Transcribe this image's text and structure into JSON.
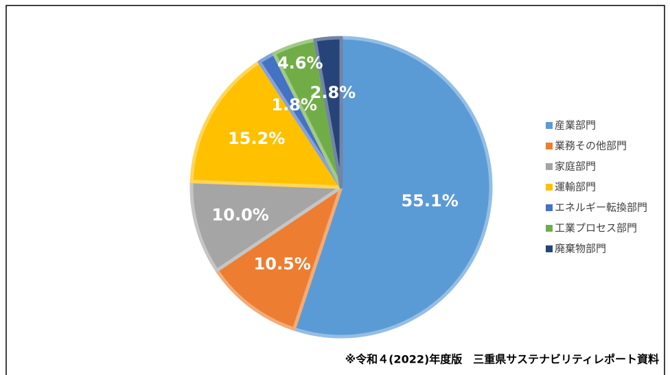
{
  "chart_data": {
    "type": "pie",
    "categories": [
      "産業部門",
      "業務その他部門",
      "家庭部門",
      "運輸部門",
      "エネルギー転換部門",
      "工業プロセス部門",
      "廃棄物部門"
    ],
    "values": [
      55.1,
      10.5,
      10.0,
      15.2,
      1.8,
      4.6,
      2.8
    ],
    "value_labels": [
      "55.1%",
      "10.5%",
      "10.0%",
      "15.2%",
      "1.8%",
      "4.6%",
      "2.8%"
    ],
    "colors": [
      "#5b9bd5",
      "#ed7d31",
      "#a5a5a5",
      "#ffc000",
      "#4472c4",
      "#70ad47",
      "#264478"
    ],
    "legend": "right",
    "note": "※令和４(2022)年度版　三重県サステナビリティレポート資料"
  }
}
